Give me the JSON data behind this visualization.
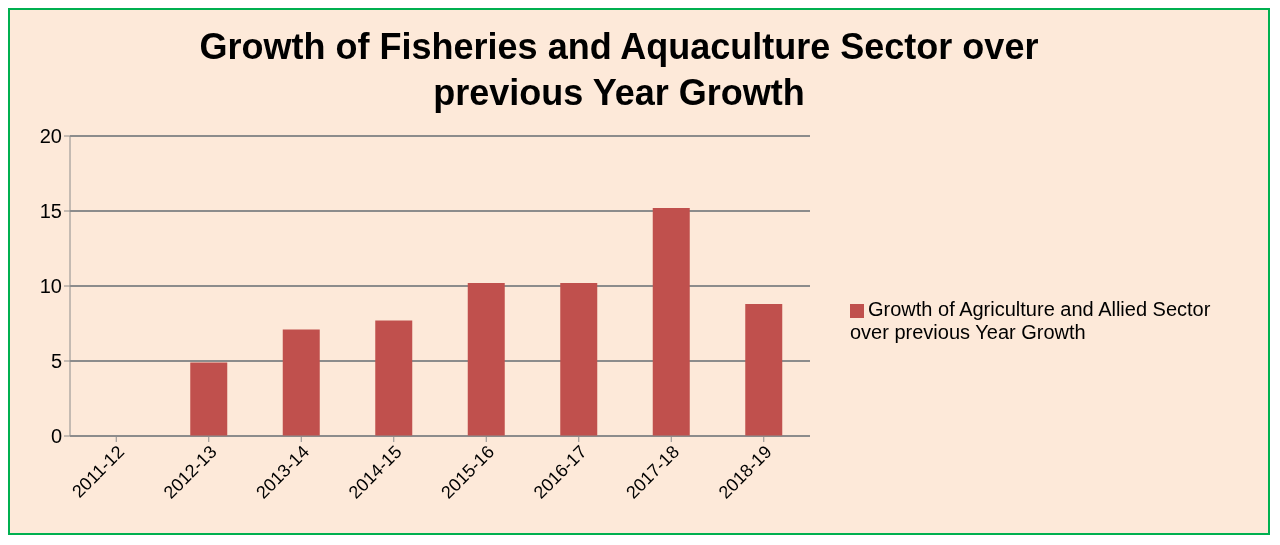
{
  "chart_data": {
    "type": "bar",
    "title": "Growth of  Fisheries and Aquaculture Sector over previous Year Growth",
    "categories": [
      "2011-12",
      "2012-13",
      "2013-14",
      "2014-15",
      "2015-16",
      "2016-17",
      "2017-18",
      "2018-19"
    ],
    "series": [
      {
        "name": "Growth of Agriculture and Allied Sector over previous Year Growth",
        "color": "#c0504d",
        "values": [
          null,
          4.9,
          7.1,
          7.7,
          10.2,
          10.2,
          15.2,
          8.8
        ]
      }
    ],
    "ylim": [
      0,
      20
    ],
    "yticks": [
      0,
      5,
      10,
      15,
      20
    ],
    "grid": "y",
    "legend": "right"
  }
}
